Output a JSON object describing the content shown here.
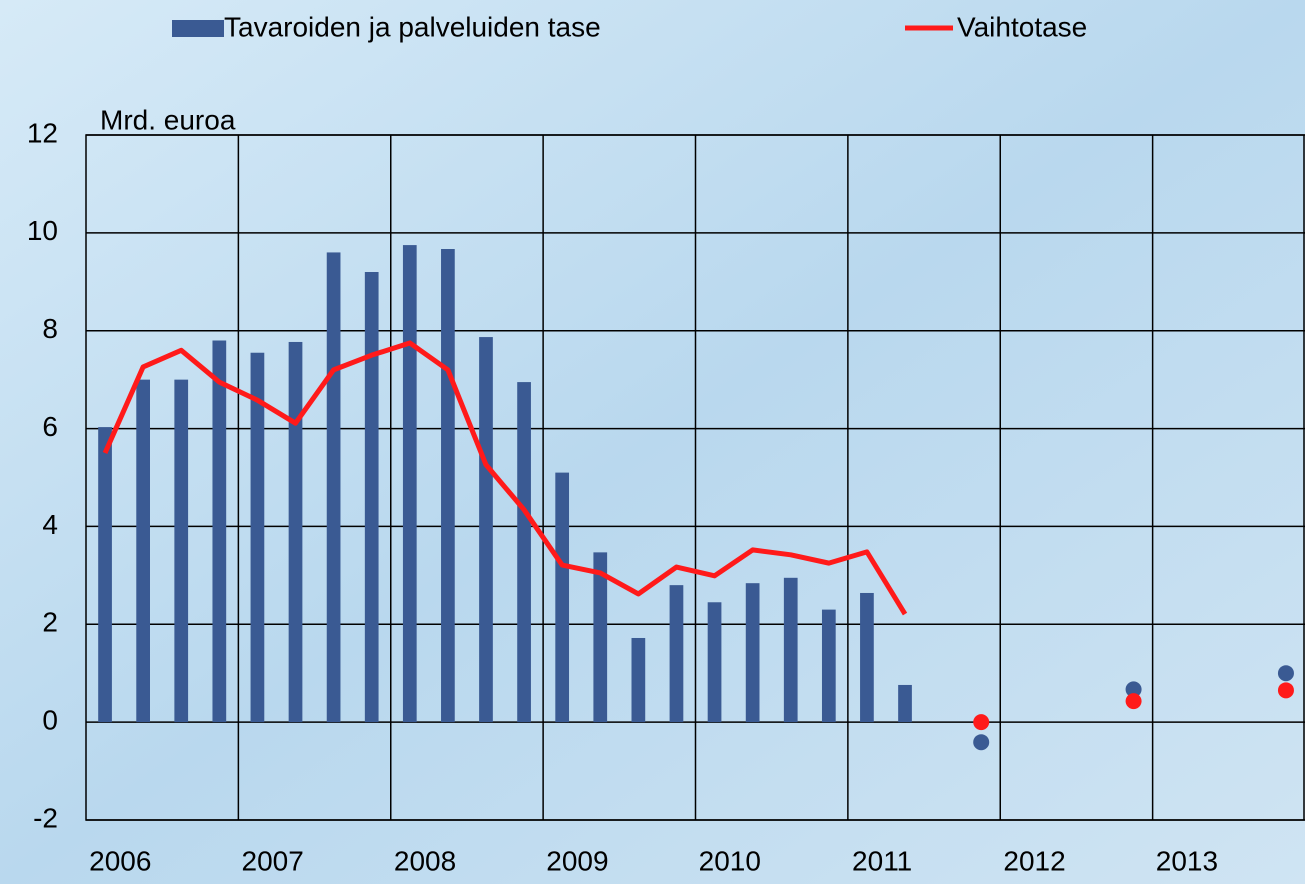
{
  "chart_data": {
    "type": "bar",
    "y_label": "Mrd. euroa",
    "categories": [
      "2006",
      null,
      null,
      null,
      "2007",
      null,
      null,
      null,
      "2008",
      null,
      null,
      null,
      "2009",
      null,
      null,
      null,
      "2010",
      null,
      null,
      null,
      "2011",
      null,
      null,
      null,
      "2012",
      null,
      null,
      null,
      "2013",
      null,
      null,
      null
    ],
    "series": [
      {
        "name": "Tavaroiden ja palveluiden tase",
        "type": "bar",
        "color": "#3a5a93",
        "values": [
          6.03,
          7.0,
          7.0,
          7.8,
          7.55,
          7.77,
          9.6,
          9.2,
          9.75,
          9.67,
          7.87,
          6.95,
          5.1,
          3.47,
          1.72,
          2.8,
          2.45,
          2.84,
          2.95,
          2.3,
          2.64,
          0.76,
          null,
          -0.41,
          null,
          null,
          null,
          0.67,
          null,
          null,
          null,
          1.0
        ]
      },
      {
        "name": "Vaihtotase",
        "type": "line",
        "color": "#ff1a1a",
        "values": [
          5.5,
          7.26,
          7.6,
          6.95,
          6.58,
          6.11,
          7.2,
          7.5,
          7.75,
          7.2,
          5.26,
          4.34,
          3.21,
          3.05,
          2.62,
          3.17,
          2.99,
          3.52,
          3.42,
          3.25,
          3.48,
          2.21,
          null,
          0.0,
          null,
          null,
          null,
          0.43,
          null,
          null,
          null,
          0.65
        ]
      }
    ],
    "ylim": [
      -2,
      12
    ],
    "yticks": [
      -2,
      0,
      2,
      4,
      6,
      8,
      10,
      12
    ],
    "grid": true
  }
}
